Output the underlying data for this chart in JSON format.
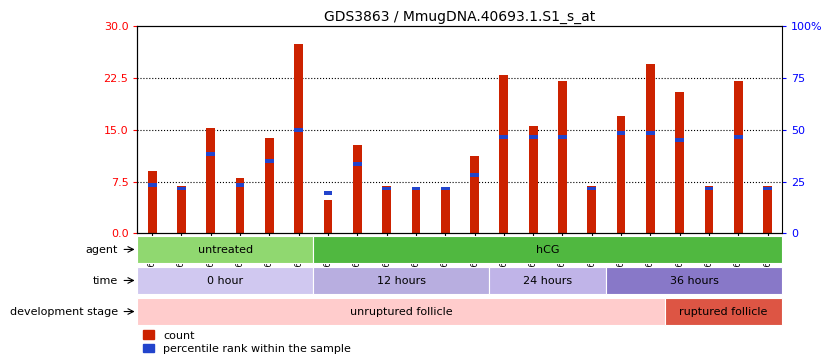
{
  "title": "GDS3863 / MmugDNA.40693.1.S1_s_at",
  "samples": [
    "GSM563219",
    "GSM563220",
    "GSM563221",
    "GSM563222",
    "GSM563223",
    "GSM563224",
    "GSM563225",
    "GSM563226",
    "GSM563227",
    "GSM563228",
    "GSM563229",
    "GSM563230",
    "GSM563231",
    "GSM563232",
    "GSM563233",
    "GSM563234",
    "GSM563235",
    "GSM563236",
    "GSM563237",
    "GSM563238",
    "GSM563239",
    "GSM563240"
  ],
  "red_values": [
    9.0,
    6.8,
    15.2,
    8.0,
    13.8,
    27.5,
    4.8,
    12.8,
    6.8,
    6.5,
    6.5,
    11.2,
    23.0,
    15.5,
    22.0,
    6.8,
    17.0,
    24.5,
    20.5,
    6.8,
    22.0,
    6.8
  ],
  "blue_values": [
    7.0,
    6.5,
    11.5,
    7.0,
    10.5,
    15.0,
    5.8,
    10.0,
    6.5,
    6.5,
    6.5,
    8.5,
    14.0,
    14.0,
    14.0,
    6.5,
    14.5,
    14.5,
    13.5,
    6.5,
    14.0,
    6.5
  ],
  "ylim_left": [
    0,
    30
  ],
  "yticks_left": [
    0,
    7.5,
    15,
    22.5,
    30
  ],
  "ylim_right": [
    0,
    100
  ],
  "yticks_right": [
    0,
    25,
    50,
    75,
    100
  ],
  "yticklabels_right": [
    "0",
    "25",
    "50",
    "75",
    "100%"
  ],
  "agent_groups": [
    {
      "label": "untreated",
      "start": 0,
      "end": 6,
      "color": "#90d870"
    },
    {
      "label": "hCG",
      "start": 6,
      "end": 22,
      "color": "#50b840"
    }
  ],
  "time_groups": [
    {
      "label": "0 hour",
      "start": 0,
      "end": 6,
      "color": "#d0c8f0"
    },
    {
      "label": "12 hours",
      "start": 6,
      "end": 12,
      "color": "#b8aee0"
    },
    {
      "label": "24 hours",
      "start": 12,
      "end": 16,
      "color": "#c0b4e8"
    },
    {
      "label": "36 hours",
      "start": 16,
      "end": 22,
      "color": "#8878c8"
    }
  ],
  "dev_groups": [
    {
      "label": "unruptured follicle",
      "start": 0,
      "end": 18,
      "color": "#ffcccc"
    },
    {
      "label": "ruptured follicle",
      "start": 18,
      "end": 22,
      "color": "#dd5544"
    }
  ],
  "legend_items": [
    {
      "color": "#cc2200",
      "label": "count"
    },
    {
      "color": "#2244cc",
      "label": "percentile rank within the sample"
    }
  ]
}
